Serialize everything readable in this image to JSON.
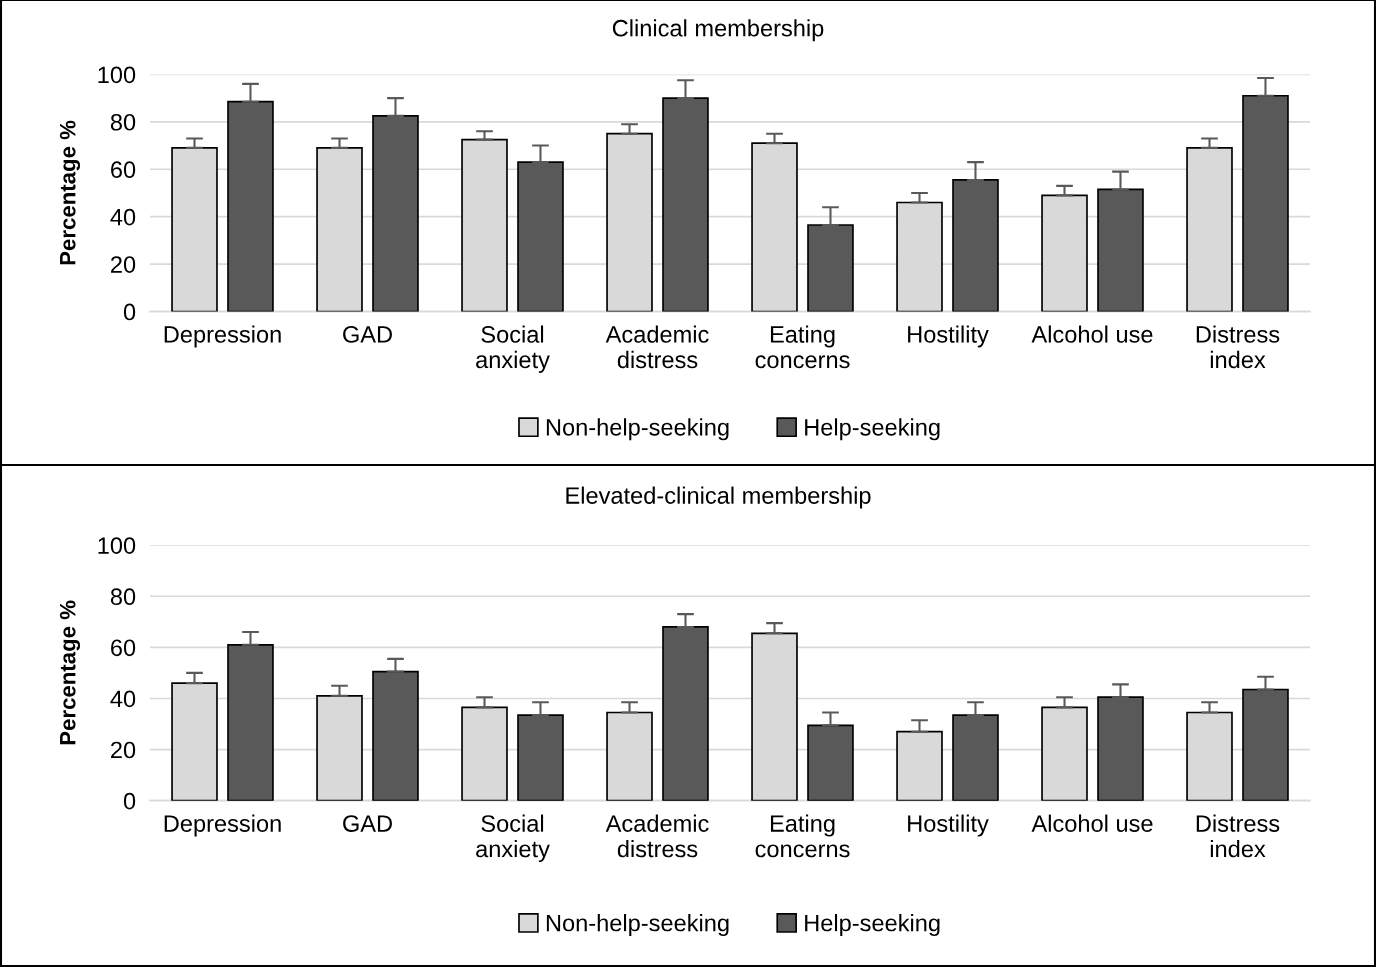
{
  "chart_data": [
    {
      "type": "bar",
      "title": "Clinical membership",
      "ylabel": "Percentage %",
      "categories": [
        "Depression",
        "GAD",
        "Social\nanxiety",
        "Academic\ndistress",
        "Eating\nconcerns",
        "Hostility",
        "Alcohol use",
        "Distress\nindex"
      ],
      "series": [
        {
          "name": "Non-help-seeking",
          "color": "#d9d9d9",
          "values": [
            69,
            69,
            72.5,
            75,
            71,
            46,
            49,
            69
          ],
          "errors": [
            [
              69,
              73
            ],
            [
              69,
              73
            ],
            [
              72.5,
              76
            ],
            [
              75,
              79
            ],
            [
              71,
              75
            ],
            [
              46,
              50
            ],
            [
              49,
              53
            ],
            [
              69,
              73
            ]
          ]
        },
        {
          "name": "Help-seeking",
          "color": "#595959",
          "values": [
            88.5,
            82.5,
            63,
            90,
            36.5,
            55.5,
            51.5,
            91
          ],
          "errors": [
            [
              88.5,
              96
            ],
            [
              82.5,
              90
            ],
            [
              63,
              70
            ],
            [
              90,
              97.5
            ],
            [
              36.5,
              44
            ],
            [
              55.5,
              63
            ],
            [
              51.5,
              59
            ],
            [
              91,
              98.5
            ]
          ]
        }
      ],
      "ylim": [
        0,
        100
      ],
      "yticks": [
        0,
        20,
        40,
        60,
        80,
        100
      ],
      "grid": "y",
      "legend": "bottom"
    },
    {
      "type": "bar",
      "title": "Elevated-clinical membership",
      "ylabel": "Percentage %",
      "categories": [
        "Depression",
        "GAD",
        "Social\nanxiety",
        "Academic\ndistress",
        "Eating\nconcerns",
        "Hostility",
        "Alcohol use",
        "Distress\nindex"
      ],
      "series": [
        {
          "name": "Non-help-seeking",
          "color": "#d9d9d9",
          "values": [
            46,
            41,
            36.5,
            34.5,
            65.5,
            27,
            36.5,
            34.5
          ],
          "errors": [
            [
              46,
              50
            ],
            [
              41,
              45
            ],
            [
              36.5,
              40.5
            ],
            [
              34.5,
              38.5
            ],
            [
              65.5,
              69.5
            ],
            [
              27,
              31.5
            ],
            [
              36.5,
              40.5
            ],
            [
              34.5,
              38.5
            ]
          ]
        },
        {
          "name": "Help-seeking",
          "color": "#595959",
          "values": [
            61,
            50.5,
            33.5,
            68,
            29.5,
            33.5,
            40.5,
            43.5
          ],
          "errors": [
            [
              61,
              66
            ],
            [
              50.5,
              55.5
            ],
            [
              33.5,
              38.5
            ],
            [
              68,
              73
            ],
            [
              29.5,
              34.5
            ],
            [
              33.5,
              38.5
            ],
            [
              40.5,
              45.5
            ],
            [
              43.5,
              48.5
            ]
          ]
        }
      ],
      "ylim": [
        0,
        100
      ],
      "yticks": [
        0,
        20,
        40,
        60,
        80,
        100
      ],
      "grid": "y",
      "legend": "bottom"
    }
  ]
}
